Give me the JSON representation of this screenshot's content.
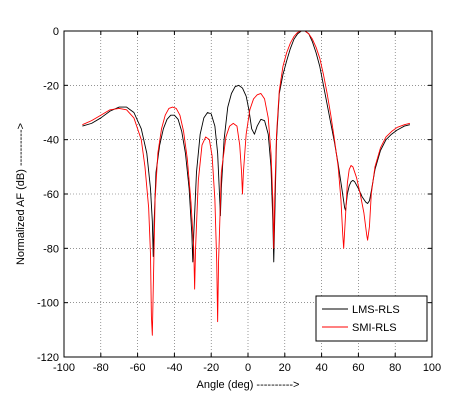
{
  "chart_data": {
    "type": "line",
    "title": "",
    "xlabel": "Angle (deg) ---------->",
    "ylabel": "Normalized AF (dB) ---------->",
    "xlim": [
      -100,
      100
    ],
    "ylim": [
      -120,
      0
    ],
    "xticks": [
      -100,
      -80,
      -60,
      -40,
      -20,
      0,
      20,
      40,
      60,
      80,
      100
    ],
    "yticks": [
      0,
      -20,
      -40,
      -60,
      -80,
      -100,
      -120
    ],
    "xtick_labels": [
      "-100",
      "-80",
      "-60",
      "-40",
      "-20",
      "0",
      "20",
      "40",
      "60",
      "80",
      "100"
    ],
    "ytick_labels": [
      "0",
      "-20",
      "-40",
      "-60",
      "-80",
      "-100",
      "-120"
    ],
    "grid": true,
    "legend_position": "bottom-right",
    "series": [
      {
        "name": "LMS-RLS",
        "color": "#000000",
        "points": [
          [
            -90,
            -35
          ],
          [
            -85,
            -34
          ],
          [
            -80,
            -32
          ],
          [
            -75,
            -29.5
          ],
          [
            -70,
            -28
          ],
          [
            -66,
            -28
          ],
          [
            -62,
            -30
          ],
          [
            -58,
            -36
          ],
          [
            -55,
            -45
          ],
          [
            -53,
            -58
          ],
          [
            -52,
            -70
          ],
          [
            -51.5,
            -83
          ],
          [
            -51,
            -70
          ],
          [
            -50,
            -52
          ],
          [
            -48,
            -42
          ],
          [
            -46,
            -36
          ],
          [
            -44,
            -32.5
          ],
          [
            -42,
            -31
          ],
          [
            -40,
            -31
          ],
          [
            -38,
            -32.5
          ],
          [
            -36,
            -37
          ],
          [
            -34,
            -45
          ],
          [
            -32,
            -58
          ],
          [
            -30.5,
            -75
          ],
          [
            -30,
            -85
          ],
          [
            -29.5,
            -75
          ],
          [
            -28,
            -52
          ],
          [
            -26,
            -38
          ],
          [
            -24,
            -32
          ],
          [
            -22,
            -30
          ],
          [
            -20,
            -30.5
          ],
          [
            -18,
            -35
          ],
          [
            -16.5,
            -45
          ],
          [
            -15.5,
            -60
          ],
          [
            -15,
            -68
          ],
          [
            -14.5,
            -58
          ],
          [
            -13,
            -40
          ],
          [
            -11,
            -28
          ],
          [
            -9,
            -23
          ],
          [
            -7,
            -20.5
          ],
          [
            -5,
            -20
          ],
          [
            -3,
            -21
          ],
          [
            -1,
            -24
          ],
          [
            0.5,
            -29
          ],
          [
            2,
            -36
          ],
          [
            3.5,
            -38
          ],
          [
            5,
            -35
          ],
          [
            7,
            -32.5
          ],
          [
            9,
            -33
          ],
          [
            11,
            -38
          ],
          [
            12.5,
            -50
          ],
          [
            13.5,
            -70
          ],
          [
            14,
            -85
          ],
          [
            14.5,
            -70
          ],
          [
            15.5,
            -40
          ],
          [
            17,
            -23
          ],
          [
            19,
            -16
          ],
          [
            21,
            -11
          ],
          [
            23,
            -6.5
          ],
          [
            25,
            -3
          ],
          [
            27,
            -1
          ],
          [
            29,
            0
          ],
          [
            31,
            0
          ],
          [
            33,
            -1
          ],
          [
            35,
            -4
          ],
          [
            37,
            -8
          ],
          [
            39,
            -13
          ],
          [
            41,
            -20
          ],
          [
            43,
            -27
          ],
          [
            45,
            -34
          ],
          [
            47,
            -41
          ],
          [
            49,
            -49
          ],
          [
            51,
            -58
          ],
          [
            52.5,
            -65
          ],
          [
            53,
            -66
          ],
          [
            54,
            -60
          ],
          [
            55,
            -57
          ],
          [
            56,
            -55.5
          ],
          [
            57,
            -55
          ],
          [
            58,
            -55.5
          ],
          [
            60,
            -58
          ],
          [
            62,
            -61
          ],
          [
            64,
            -63
          ],
          [
            65,
            -63.5
          ],
          [
            66,
            -62.5
          ],
          [
            67,
            -59
          ],
          [
            69,
            -51
          ],
          [
            72,
            -44
          ],
          [
            75,
            -40
          ],
          [
            78,
            -38
          ],
          [
            81,
            -36.5
          ],
          [
            85,
            -35
          ],
          [
            88,
            -34.5
          ]
        ]
      },
      {
        "name": "SMI-RLS",
        "color": "#ff0000",
        "points": [
          [
            -90,
            -34.5
          ],
          [
            -85,
            -33
          ],
          [
            -80,
            -31
          ],
          [
            -75,
            -29
          ],
          [
            -70,
            -28.5
          ],
          [
            -66,
            -29
          ],
          [
            -62,
            -32
          ],
          [
            -58,
            -40
          ],
          [
            -56,
            -50
          ],
          [
            -54,
            -65
          ],
          [
            -53,
            -82
          ],
          [
            -52.5,
            -105
          ],
          [
            -52,
            -112
          ],
          [
            -51.5,
            -95
          ],
          [
            -50.5,
            -62
          ],
          [
            -49,
            -45
          ],
          [
            -47,
            -36
          ],
          [
            -45,
            -31
          ],
          [
            -43,
            -28.5
          ],
          [
            -41,
            -28
          ],
          [
            -39,
            -28.5
          ],
          [
            -37,
            -31
          ],
          [
            -35,
            -37
          ],
          [
            -33,
            -47
          ],
          [
            -31,
            -63
          ],
          [
            -29.5,
            -80
          ],
          [
            -29,
            -95
          ],
          [
            -28.5,
            -80
          ],
          [
            -27,
            -55
          ],
          [
            -25,
            -42
          ],
          [
            -23,
            -39
          ],
          [
            -21,
            -40
          ],
          [
            -19.5,
            -46
          ],
          [
            -18,
            -62
          ],
          [
            -17,
            -85
          ],
          [
            -16.5,
            -107
          ],
          [
            -16,
            -85
          ],
          [
            -14.5,
            -52
          ],
          [
            -12,
            -39
          ],
          [
            -10,
            -35
          ],
          [
            -8,
            -34
          ],
          [
            -6,
            -35
          ],
          [
            -4.5,
            -42
          ],
          [
            -3.5,
            -52
          ],
          [
            -3,
            -60
          ],
          [
            -2.5,
            -52
          ],
          [
            -1,
            -38
          ],
          [
            1,
            -29
          ],
          [
            3,
            -25
          ],
          [
            5,
            -23.5
          ],
          [
            7,
            -23
          ],
          [
            9,
            -25
          ],
          [
            11,
            -32
          ],
          [
            12.5,
            -45
          ],
          [
            13.5,
            -62
          ],
          [
            14,
            -80
          ],
          [
            14.5,
            -62
          ],
          [
            15.5,
            -38
          ],
          [
            17,
            -22
          ],
          [
            19,
            -13
          ],
          [
            21,
            -8
          ],
          [
            23,
            -4.5
          ],
          [
            25,
            -2
          ],
          [
            27,
            -0.5
          ],
          [
            29,
            0
          ],
          [
            31,
            0
          ],
          [
            33,
            -1
          ],
          [
            35,
            -3
          ],
          [
            37,
            -6
          ],
          [
            39,
            -10
          ],
          [
            41,
            -16
          ],
          [
            43,
            -23
          ],
          [
            45,
            -31
          ],
          [
            47,
            -40
          ],
          [
            49,
            -50
          ],
          [
            50.5,
            -62
          ],
          [
            51.5,
            -75
          ],
          [
            52,
            -80
          ],
          [
            53,
            -68
          ],
          [
            54,
            -56
          ],
          [
            55,
            -51
          ],
          [
            56,
            -49.5
          ],
          [
            57,
            -50
          ],
          [
            59,
            -54
          ],
          [
            61,
            -60
          ],
          [
            63,
            -67
          ],
          [
            64.5,
            -75
          ],
          [
            65,
            -77
          ],
          [
            66,
            -72
          ],
          [
            67,
            -60
          ],
          [
            69,
            -50
          ],
          [
            72,
            -43
          ],
          [
            75,
            -39
          ],
          [
            78,
            -37
          ],
          [
            81,
            -35.5
          ],
          [
            85,
            -34.5
          ],
          [
            88,
            -34
          ]
        ]
      }
    ]
  }
}
